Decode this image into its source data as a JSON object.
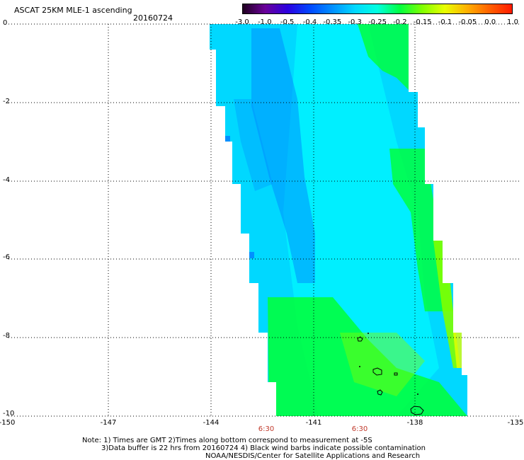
{
  "header": {
    "title": "ASCAT 25KM MLE-1 ascending",
    "date": "20160724"
  },
  "colorbar": {
    "labels": [
      "-3.0",
      "-1.0",
      "-0.5",
      "-0.4",
      "-0.35",
      "-0.3",
      "-0.25",
      "-0.2",
      "-0.15",
      "-0.1",
      "-0.05",
      "0.0",
      "1.0"
    ],
    "colors": [
      "#200020",
      "#6a009a",
      "#2b00e0",
      "#0048ff",
      "#0090ff",
      "#00d8ff",
      "#00ffe0",
      "#00ff40",
      "#80ff00",
      "#e8ff00",
      "#ffb000",
      "#ff6000",
      "#ff1a00"
    ]
  },
  "axes": {
    "y_ticks": [
      "0",
      "-2",
      "-4",
      "-6",
      "-8",
      "-10"
    ],
    "x_ticks": [
      "-150",
      "-147",
      "-144",
      "-141",
      "-138",
      "-135"
    ],
    "time_marks": [
      "6:30",
      "6:30"
    ]
  },
  "notes": {
    "line1": "Note: 1) Times are GMT 2)Times along bottom correspond to measurement at -5S",
    "line2": "3)Data buffer is 22 hrs from 20160724 4) Black wind barbs indicate possible contamination",
    "line3": "NOAA/NESDIS/Center for Satellite Applications and Research"
  },
  "legend_colors": {
    "cyan": "#00ffff",
    "light_blue": "#00d8ff",
    "blue": "#0090ff",
    "green": "#00ff40",
    "lime": "#80ff00",
    "yellow": "#e8ff00",
    "orange": "#ff8000"
  }
}
